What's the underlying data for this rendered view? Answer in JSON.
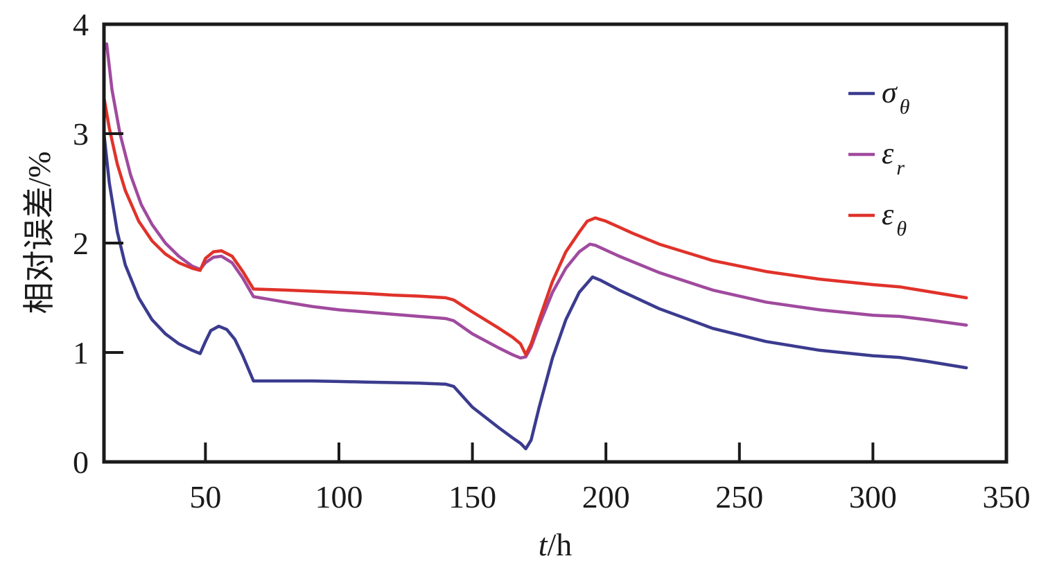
{
  "chart_data": {
    "type": "line",
    "xlabel": {
      "italic": "t",
      "rest": "/h"
    },
    "ylabel": "相对误差/%",
    "xlim": [
      12,
      350
    ],
    "ylim": [
      0,
      4
    ],
    "xticks": [
      50,
      100,
      150,
      200,
      250,
      300,
      350
    ],
    "yticks": [
      0,
      1,
      2,
      3,
      4
    ],
    "grid": false,
    "legend_position": "top-right",
    "series": [
      {
        "name": "σθ",
        "symbol": "σ",
        "subscript": "θ",
        "color": "#3b3b8f",
        "points": [
          [
            12,
            3.0
          ],
          [
            14,
            2.55
          ],
          [
            17,
            2.1
          ],
          [
            20,
            1.8
          ],
          [
            25,
            1.5
          ],
          [
            30,
            1.3
          ],
          [
            35,
            1.17
          ],
          [
            40,
            1.08
          ],
          [
            45,
            1.02
          ],
          [
            48,
            0.99
          ],
          [
            50,
            1.1
          ],
          [
            52,
            1.2
          ],
          [
            55,
            1.24
          ],
          [
            58,
            1.21
          ],
          [
            61,
            1.12
          ],
          [
            64,
            0.97
          ],
          [
            68,
            0.74
          ],
          [
            80,
            0.74
          ],
          [
            90,
            0.74
          ],
          [
            100,
            0.735
          ],
          [
            110,
            0.73
          ],
          [
            120,
            0.725
          ],
          [
            130,
            0.72
          ],
          [
            140,
            0.71
          ],
          [
            143,
            0.69
          ],
          [
            150,
            0.5
          ],
          [
            160,
            0.31
          ],
          [
            165,
            0.22
          ],
          [
            168,
            0.17
          ],
          [
            170,
            0.12
          ],
          [
            172,
            0.2
          ],
          [
            175,
            0.5
          ],
          [
            180,
            0.95
          ],
          [
            185,
            1.3
          ],
          [
            190,
            1.55
          ],
          [
            195,
            1.69
          ],
          [
            198,
            1.66
          ],
          [
            205,
            1.57
          ],
          [
            220,
            1.4
          ],
          [
            240,
            1.22
          ],
          [
            260,
            1.1
          ],
          [
            280,
            1.02
          ],
          [
            300,
            0.97
          ],
          [
            310,
            0.955
          ],
          [
            320,
            0.92
          ],
          [
            335,
            0.86
          ]
        ]
      },
      {
        "name": "εr",
        "symbol": "ε",
        "subscript": "r",
        "color": "#a04a9e",
        "points": [
          [
            13,
            3.82
          ],
          [
            15,
            3.4
          ],
          [
            18,
            3.0
          ],
          [
            22,
            2.62
          ],
          [
            26,
            2.35
          ],
          [
            30,
            2.17
          ],
          [
            35,
            2.0
          ],
          [
            40,
            1.88
          ],
          [
            45,
            1.79
          ],
          [
            48,
            1.76
          ],
          [
            50,
            1.82
          ],
          [
            53,
            1.87
          ],
          [
            56,
            1.88
          ],
          [
            60,
            1.82
          ],
          [
            64,
            1.68
          ],
          [
            68,
            1.51
          ],
          [
            80,
            1.46
          ],
          [
            90,
            1.42
          ],
          [
            100,
            1.39
          ],
          [
            110,
            1.37
          ],
          [
            120,
            1.35
          ],
          [
            130,
            1.33
          ],
          [
            140,
            1.31
          ],
          [
            143,
            1.29
          ],
          [
            150,
            1.17
          ],
          [
            160,
            1.04
          ],
          [
            165,
            0.98
          ],
          [
            168,
            0.95
          ],
          [
            170,
            0.96
          ],
          [
            172,
            1.05
          ],
          [
            175,
            1.25
          ],
          [
            180,
            1.55
          ],
          [
            185,
            1.77
          ],
          [
            190,
            1.92
          ],
          [
            194,
            1.99
          ],
          [
            196,
            1.98
          ],
          [
            205,
            1.88
          ],
          [
            220,
            1.73
          ],
          [
            240,
            1.57
          ],
          [
            260,
            1.46
          ],
          [
            280,
            1.39
          ],
          [
            300,
            1.34
          ],
          [
            310,
            1.33
          ],
          [
            320,
            1.3
          ],
          [
            335,
            1.25
          ]
        ]
      },
      {
        "name": "εθ",
        "symbol": "ε",
        "subscript": "θ",
        "color": "#e0322a",
        "points": [
          [
            12,
            3.33
          ],
          [
            14,
            3.05
          ],
          [
            17,
            2.72
          ],
          [
            20,
            2.48
          ],
          [
            25,
            2.2
          ],
          [
            30,
            2.02
          ],
          [
            35,
            1.9
          ],
          [
            40,
            1.82
          ],
          [
            45,
            1.77
          ],
          [
            48,
            1.75
          ],
          [
            50,
            1.86
          ],
          [
            53,
            1.92
          ],
          [
            56,
            1.93
          ],
          [
            60,
            1.88
          ],
          [
            64,
            1.74
          ],
          [
            68,
            1.58
          ],
          [
            80,
            1.57
          ],
          [
            90,
            1.56
          ],
          [
            100,
            1.55
          ],
          [
            110,
            1.54
          ],
          [
            120,
            1.525
          ],
          [
            130,
            1.515
          ],
          [
            140,
            1.5
          ],
          [
            143,
            1.48
          ],
          [
            150,
            1.37
          ],
          [
            160,
            1.22
          ],
          [
            165,
            1.14
          ],
          [
            168,
            1.08
          ],
          [
            170,
            0.98
          ],
          [
            172,
            1.08
          ],
          [
            175,
            1.3
          ],
          [
            180,
            1.65
          ],
          [
            185,
            1.92
          ],
          [
            190,
            2.1
          ],
          [
            193,
            2.2
          ],
          [
            196,
            2.23
          ],
          [
            200,
            2.2
          ],
          [
            210,
            2.09
          ],
          [
            220,
            1.99
          ],
          [
            240,
            1.84
          ],
          [
            260,
            1.74
          ],
          [
            280,
            1.67
          ],
          [
            300,
            1.62
          ],
          [
            310,
            1.6
          ],
          [
            320,
            1.56
          ],
          [
            335,
            1.5
          ]
        ]
      }
    ]
  }
}
